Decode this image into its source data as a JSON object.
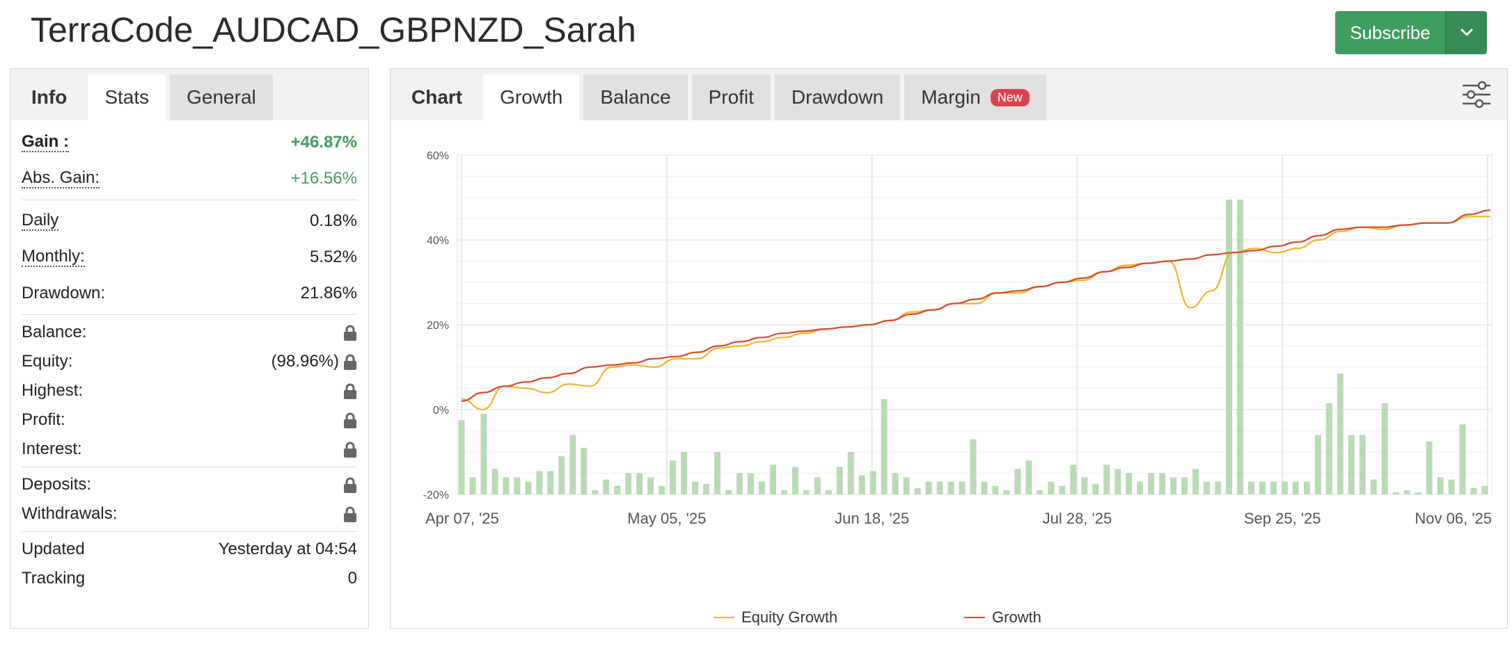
{
  "header": {
    "title": "TerraCode_AUDCAD_GBPNZD_Sarah",
    "subscribe_label": "Subscribe"
  },
  "left_tabs": [
    {
      "label": "Info"
    },
    {
      "label": "Stats"
    },
    {
      "label": "General"
    }
  ],
  "stats": {
    "gain": {
      "label": "Gain :",
      "value": "+46.87%"
    },
    "abs_gain": {
      "label": "Abs. Gain:",
      "value": "+16.56%"
    },
    "daily": {
      "label": "Daily",
      "value": "0.18%"
    },
    "monthly": {
      "label": "Monthly:",
      "value": "5.52%"
    },
    "drawdown": {
      "label": "Drawdown:",
      "value": "21.86%"
    },
    "balance": {
      "label": "Balance:"
    },
    "equity": {
      "label": "Equity:",
      "value": "(98.96%)"
    },
    "highest": {
      "label": "Highest:"
    },
    "profit": {
      "label": "Profit:"
    },
    "interest": {
      "label": "Interest:"
    },
    "deposits": {
      "label": "Deposits:"
    },
    "withdrawals": {
      "label": "Withdrawals:"
    },
    "updated": {
      "label": "Updated",
      "value": "Yesterday at 04:54"
    },
    "tracking": {
      "label": "Tracking",
      "value": "0"
    }
  },
  "right_tabs": [
    {
      "label": "Chart"
    },
    {
      "label": "Growth"
    },
    {
      "label": "Balance"
    },
    {
      "label": "Profit"
    },
    {
      "label": "Drawdown"
    },
    {
      "label": "Margin",
      "badge": "New"
    }
  ],
  "colors": {
    "green": "#3f9d5f",
    "equity": "#f0b429",
    "growth": "#d9472b",
    "bars": "#b9dbb5"
  },
  "chart_data": {
    "type": "line",
    "x_tick_labels": [
      "Apr 07, '25",
      "May 05, '25",
      "Jun 18, '25",
      "Jul 28, '25",
      "Sep 25, '25",
      "Nov 06, '25"
    ],
    "y_tick_labels": [
      "60%",
      "40%",
      "20%",
      "0%",
      "-20%"
    ],
    "ylim": [
      -20,
      60
    ],
    "grid": true,
    "legend_position": "bottom",
    "series": [
      {
        "name": "Equity Growth",
        "color": "#f0b429",
        "values": [
          2.5,
          0,
          5.5,
          5,
          4,
          6,
          5.5,
          10,
          10.5,
          10,
          12,
          12,
          14.5,
          15,
          16,
          17,
          18,
          19,
          19.5,
          20,
          21,
          23,
          23.5,
          25,
          25,
          27.5,
          27.5,
          29,
          30,
          30.5,
          32.5,
          34,
          34.5,
          35,
          24,
          28,
          37,
          38,
          37,
          38,
          40,
          42,
          43,
          42.5,
          43.5,
          44,
          44,
          45.5,
          45.5
        ]
      },
      {
        "name": "Growth",
        "color": "#d9472b",
        "values": [
          2,
          4,
          5.5,
          6.5,
          7.5,
          8.5,
          10,
          10.5,
          11,
          12,
          12.5,
          13.5,
          15,
          16,
          17,
          18,
          18.5,
          19,
          19.5,
          20,
          21,
          22.5,
          23.5,
          25,
          26,
          27.5,
          28,
          29,
          30,
          31,
          32.5,
          33.5,
          34.5,
          35,
          35.5,
          36.5,
          37,
          37.5,
          38.5,
          39.5,
          41,
          42.5,
          43,
          43,
          43.5,
          44,
          44,
          46,
          47
        ]
      }
    ],
    "bars": {
      "name": "",
      "color": "#b9dbb5",
      "values": [
        -2.5,
        -16,
        -1,
        -14,
        -16,
        -16,
        -17,
        -14.5,
        -14.5,
        -11,
        -6,
        -9,
        -19,
        -16.5,
        -18,
        -15,
        -15,
        -16,
        -18,
        -12,
        -10,
        -17,
        -17.5,
        -10,
        -19,
        -15,
        -15,
        -17,
        -13,
        -19,
        -13.5,
        -19,
        -16,
        -19,
        -13.5,
        -10,
        -15.5,
        -14.5,
        2.5,
        -15,
        -16,
        -18.5,
        -17,
        -17,
        -17,
        -17,
        -7,
        -17,
        -18,
        -19,
        -14,
        -12,
        -19,
        -17,
        -18,
        -13,
        -16,
        -17.5,
        -13,
        -14,
        -15,
        -17,
        -15,
        -15,
        -16,
        -16,
        -14,
        -17,
        -17,
        49.5,
        49.5,
        -17,
        -17,
        -17,
        -17,
        -17,
        -17,
        -6,
        1.5,
        8.5,
        -6,
        -6,
        -16.5,
        1.5,
        -19.5,
        -19,
        -19.5,
        -7.5,
        -16,
        -16.5,
        -3.5,
        -18.5,
        -18
      ]
    }
  }
}
